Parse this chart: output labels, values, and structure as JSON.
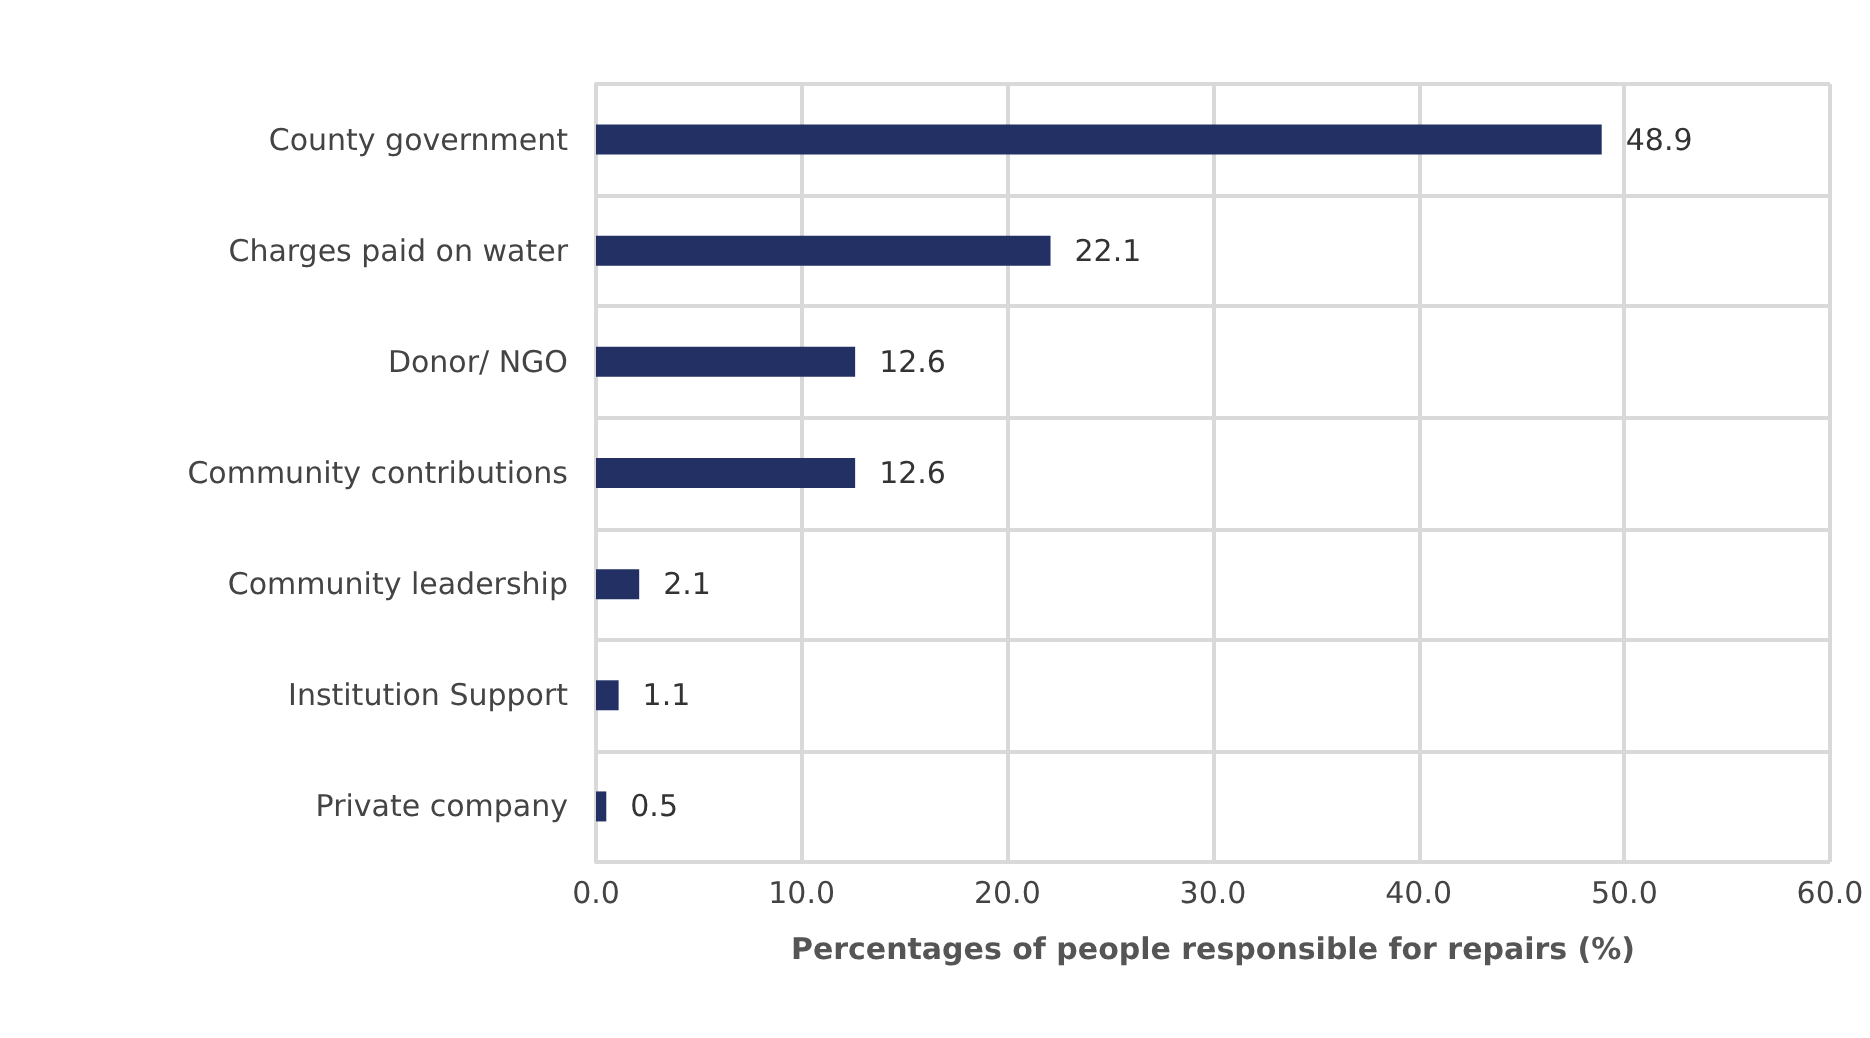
{
  "chart_data": {
    "type": "bar",
    "orientation": "horizontal",
    "categories": [
      "County government",
      "Charges paid on water",
      "Donor/ NGO",
      "Community contributions",
      "Community leadership",
      "Institution Support",
      "Private company"
    ],
    "values": [
      48.9,
      22.1,
      12.6,
      12.6,
      2.1,
      1.1,
      0.5
    ],
    "color": "#233064",
    "xlabel": "Percentages of people responsible for repairs (%)",
    "xlim": [
      0,
      60
    ],
    "xticks": [
      {
        "value": 0,
        "label": "0.0"
      },
      {
        "value": 10,
        "label": "10.0"
      },
      {
        "value": 20,
        "label": "20.0"
      },
      {
        "value": 30,
        "label": "30.0"
      },
      {
        "value": 40,
        "label": "40.0"
      },
      {
        "value": 50,
        "label": "50.0"
      },
      {
        "value": 60,
        "label": "60.0"
      }
    ],
    "grid": true,
    "data_labels": true
  }
}
